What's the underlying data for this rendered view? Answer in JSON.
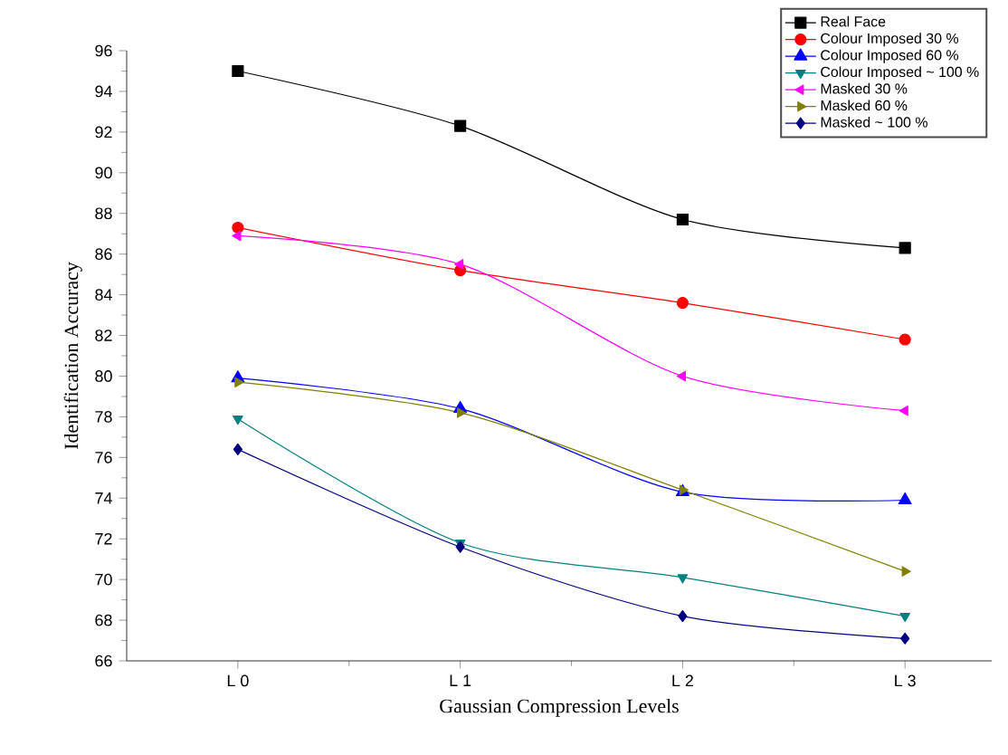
{
  "chart_data": {
    "type": "line",
    "xlabel": "Gaussian Compression Levels",
    "ylabel": "Identification Accuracy",
    "categories": [
      "L 0",
      "L 1",
      "L 2",
      "L 3"
    ],
    "ylim": [
      66,
      96
    ],
    "yticks": [
      66,
      68,
      70,
      72,
      74,
      76,
      78,
      80,
      82,
      84,
      86,
      88,
      90,
      92,
      94,
      96
    ],
    "legend": "top right",
    "line_style": "solid",
    "series": [
      {
        "name": "Real Face",
        "color": "#000000",
        "marker": "square",
        "values": [
          95.0,
          92.3,
          87.7,
          86.3
        ]
      },
      {
        "name": "Colour Imposed 30 %",
        "color": "#ff0000",
        "marker": "circle",
        "values": [
          87.3,
          85.2,
          83.6,
          81.8
        ]
      },
      {
        "name": "Colour Imposed 60 %",
        "color": "#0000ff",
        "marker": "triangle",
        "values": [
          79.9,
          78.4,
          74.3,
          73.9
        ]
      },
      {
        "name": "Colour Imposed ~ 100 %",
        "color": "#008080",
        "marker": "triangle-down",
        "values": [
          77.9,
          71.8,
          70.1,
          68.2
        ]
      },
      {
        "name": "Masked 30 %",
        "color": "#ff00ff",
        "marker": "triangle-left",
        "values": [
          86.9,
          85.5,
          80.0,
          78.3
        ]
      },
      {
        "name": "Masked 60 %",
        "color": "#808000",
        "marker": "triangle-right",
        "values": [
          79.7,
          78.2,
          74.4,
          70.4
        ]
      },
      {
        "name": "Masked ~ 100 %",
        "color": "#000080",
        "marker": "diamond",
        "values": [
          76.4,
          71.6,
          68.2,
          67.1
        ]
      }
    ]
  }
}
